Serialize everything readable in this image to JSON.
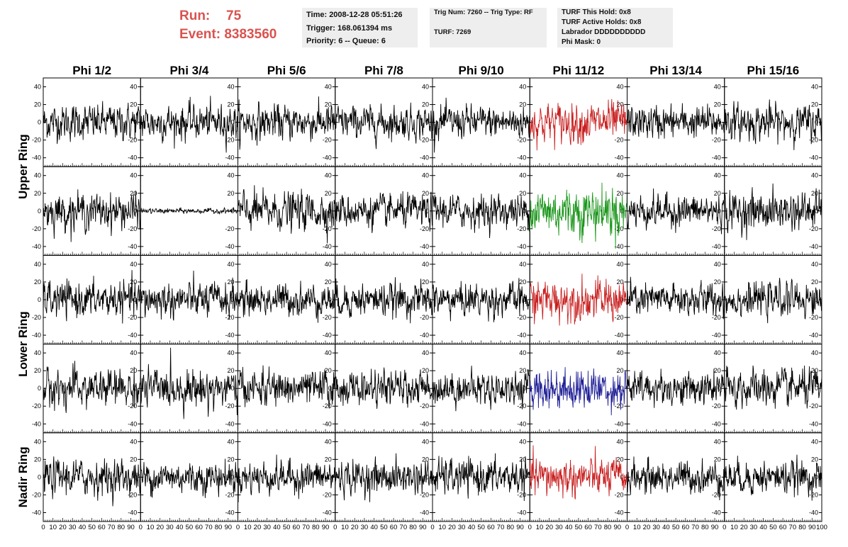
{
  "header": {
    "run_label": "Run:",
    "run_value": "75",
    "event_label": "Event:",
    "event_value": "8383560",
    "run_color": "#d9534f"
  },
  "info_time": {
    "line1": "Time: 2008-12-28 05:51:26",
    "line2": "Trigger: 168.061394 ms",
    "line3": "Priority: 6 -- Queue: 6"
  },
  "info_trig": {
    "line1": "Trig Num: 7260 -- Trig Type: RF",
    "line2": "TURF: 7269"
  },
  "info_turf": {
    "line1": "TURF This Hold: 0x8",
    "line2": "TURF Active Holds: 0x8",
    "line3": "Labrador DDDDDDDDDD",
    "line4": "Phi Mask: 0"
  },
  "chart_data": {
    "type": "line",
    "columns": [
      "Phi 1/2",
      "Phi 3/4",
      "Phi 5/6",
      "Phi 7/8",
      "Phi 9/10",
      "Phi 11/12",
      "Phi 13/14",
      "Phi 15/16"
    ],
    "row_groups": [
      {
        "label": "Upper Ring",
        "rows": 2
      },
      {
        "label": "Lower Ring",
        "rows": 2
      },
      {
        "label": "Nadir Ring",
        "rows": 1
      }
    ],
    "xlim": [
      0,
      100
    ],
    "x_tick_labels": [
      "0",
      "10",
      "20",
      "30",
      "40",
      "50",
      "60",
      "70",
      "80",
      "90",
      "100"
    ],
    "ylim": [
      -50,
      50
    ],
    "y_tick_labels": [
      "-40",
      "-20",
      "0",
      "20",
      "40"
    ],
    "samples_per_trace": 260,
    "default_color": "#000000",
    "traces": [
      [
        "black",
        "black",
        "black",
        "black",
        "black",
        "red",
        "black",
        "black"
      ],
      [
        "black",
        "black",
        "black",
        "black",
        "black",
        "green",
        "black",
        "black"
      ],
      [
        "black",
        "black",
        "black",
        "black",
        "black",
        "red",
        "black",
        "black"
      ],
      [
        "black",
        "black",
        "black",
        "black",
        "black",
        "blue",
        "black",
        "black"
      ],
      [
        "black",
        "black",
        "black",
        "black",
        "black",
        "red",
        "black",
        "black"
      ]
    ],
    "amplitude": [
      [
        14,
        14,
        14,
        13,
        13,
        16,
        13,
        14
      ],
      [
        14,
        2,
        15,
        13,
        13,
        20,
        13,
        15
      ],
      [
        14,
        14,
        13,
        13,
        13,
        16,
        13,
        13
      ],
      [
        15,
        15,
        14,
        13,
        13,
        16,
        13,
        15
      ],
      [
        14,
        13,
        13,
        13,
        14,
        15,
        13,
        13
      ]
    ],
    "colors": {
      "black": "#000000",
      "red": "#c81e1e",
      "green": "#1a961a",
      "blue": "#1e1e96"
    }
  }
}
